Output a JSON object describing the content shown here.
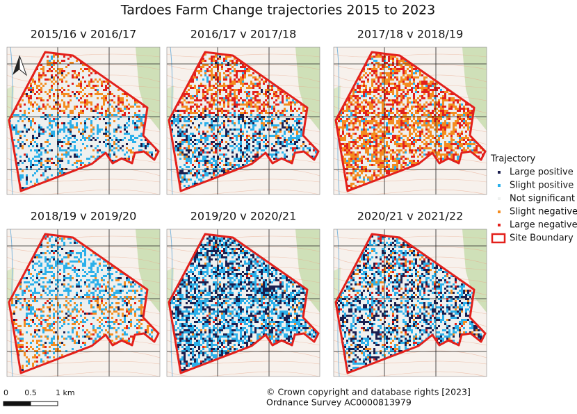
{
  "title": "Tardoes Farm Change trajectories 2015 to 2023",
  "panels": [
    {
      "title": "2015/16 v 2016/17"
    },
    {
      "title": "2016/17 v 2017/18"
    },
    {
      "title": "2017/18 v 2018/19"
    },
    {
      "title": "2018/19 v 2019/20"
    },
    {
      "title": "2019/20 v 2020/21"
    },
    {
      "title": "2020/21 v 2021/22"
    }
  ],
  "legend": {
    "title": "Trajectory",
    "items": [
      {
        "label": "Large positive",
        "color": "#1b1f4f"
      },
      {
        "label": "Slight positive",
        "color": "#2bb0ea"
      },
      {
        "label": "Not significant",
        "color": "#eef0ef"
      },
      {
        "label": "Slight negative",
        "color": "#f48c20"
      },
      {
        "label": "Large negative",
        "color": "#e3201b"
      },
      {
        "label": "Site Boundary",
        "color": "#e3201b"
      }
    ]
  },
  "scale_bar": {
    "labels": [
      "0",
      "0.5",
      "1 km"
    ]
  },
  "copyright": [
    "© Crown copyright and database rights [2023]",
    "Ordnance Survey AC0000813979"
  ]
}
